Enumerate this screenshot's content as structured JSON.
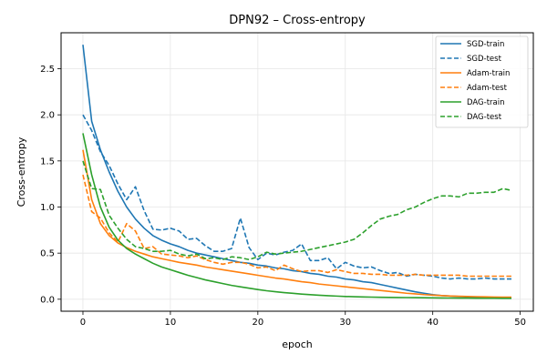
{
  "chart_data": {
    "type": "line",
    "title": "DPN92 – Cross-entropy",
    "xlabel": "epoch",
    "ylabel": "Cross-entropy",
    "xlim": [
      -2.5,
      51.5
    ],
    "ylim": [
      -0.13,
      2.89
    ],
    "x_ticks": [
      0,
      10,
      20,
      30,
      40,
      50
    ],
    "y_ticks": [
      0.0,
      0.5,
      1.0,
      1.5,
      2.0,
      2.5
    ],
    "grid": true,
    "legend_position": "top-right",
    "series": [
      {
        "name": "SGD-train",
        "color": "#1f77b4",
        "dash": false,
        "x": [
          0,
          1,
          2,
          3,
          4,
          5,
          6,
          7,
          8,
          9,
          10,
          11,
          12,
          13,
          14,
          15,
          16,
          17,
          18,
          19,
          20,
          21,
          22,
          23,
          24,
          25,
          26,
          27,
          28,
          29,
          30,
          31,
          32,
          33,
          34,
          35,
          36,
          37,
          38,
          39,
          40,
          41,
          42,
          43,
          44,
          45,
          46,
          47,
          48,
          49
        ],
        "values": [
          2.76,
          1.93,
          1.62,
          1.38,
          1.17,
          1.0,
          0.87,
          0.77,
          0.69,
          0.64,
          0.6,
          0.57,
          0.53,
          0.5,
          0.48,
          0.46,
          0.44,
          0.42,
          0.4,
          0.39,
          0.37,
          0.36,
          0.34,
          0.33,
          0.31,
          0.3,
          0.28,
          0.27,
          0.25,
          0.24,
          0.22,
          0.21,
          0.19,
          0.18,
          0.16,
          0.14,
          0.12,
          0.1,
          0.08,
          0.065,
          0.05,
          0.04,
          0.035,
          0.03,
          0.025,
          0.022,
          0.02,
          0.018,
          0.015,
          0.013
        ]
      },
      {
        "name": "SGD-test",
        "color": "#1f77b4",
        "dash": true,
        "x": [
          0,
          1,
          2,
          3,
          4,
          5,
          6,
          7,
          8,
          9,
          10,
          11,
          12,
          13,
          14,
          15,
          16,
          17,
          18,
          19,
          20,
          21,
          22,
          23,
          24,
          25,
          26,
          27,
          28,
          29,
          30,
          31,
          32,
          33,
          34,
          35,
          36,
          37,
          38,
          39,
          40,
          41,
          42,
          43,
          44,
          45,
          46,
          47,
          48,
          49
        ],
        "values": [
          2.0,
          1.83,
          1.6,
          1.45,
          1.25,
          1.08,
          1.22,
          0.96,
          0.76,
          0.75,
          0.77,
          0.74,
          0.65,
          0.66,
          0.58,
          0.52,
          0.52,
          0.55,
          0.88,
          0.56,
          0.43,
          0.5,
          0.48,
          0.51,
          0.53,
          0.6,
          0.42,
          0.42,
          0.45,
          0.33,
          0.4,
          0.36,
          0.34,
          0.35,
          0.31,
          0.28,
          0.29,
          0.25,
          0.27,
          0.26,
          0.25,
          0.23,
          0.22,
          0.23,
          0.22,
          0.22,
          0.23,
          0.22,
          0.22,
          0.22
        ]
      },
      {
        "name": "Adam-train",
        "color": "#ff7f0e",
        "dash": false,
        "x": [
          0,
          1,
          2,
          3,
          4,
          5,
          6,
          7,
          8,
          9,
          10,
          11,
          12,
          13,
          14,
          15,
          16,
          17,
          18,
          19,
          20,
          21,
          22,
          23,
          24,
          25,
          26,
          27,
          28,
          29,
          30,
          31,
          32,
          33,
          34,
          35,
          36,
          37,
          38,
          39,
          40,
          41,
          42,
          43,
          44,
          45,
          46,
          47,
          48,
          49
        ],
        "values": [
          1.62,
          1.08,
          0.82,
          0.69,
          0.61,
          0.56,
          0.52,
          0.49,
          0.46,
          0.44,
          0.42,
          0.4,
          0.385,
          0.37,
          0.35,
          0.335,
          0.32,
          0.305,
          0.29,
          0.275,
          0.26,
          0.245,
          0.23,
          0.22,
          0.205,
          0.19,
          0.18,
          0.165,
          0.155,
          0.145,
          0.135,
          0.125,
          0.115,
          0.105,
          0.095,
          0.085,
          0.075,
          0.065,
          0.058,
          0.05,
          0.045,
          0.04,
          0.035,
          0.032,
          0.03,
          0.028,
          0.026,
          0.024,
          0.023,
          0.022
        ]
      },
      {
        "name": "Adam-test",
        "color": "#ff7f0e",
        "dash": true,
        "x": [
          0,
          1,
          2,
          3,
          4,
          5,
          6,
          7,
          8,
          9,
          10,
          11,
          12,
          13,
          14,
          15,
          16,
          17,
          18,
          19,
          20,
          21,
          22,
          23,
          24,
          25,
          26,
          27,
          28,
          29,
          30,
          31,
          32,
          33,
          34,
          35,
          36,
          37,
          38,
          39,
          40,
          41,
          42,
          43,
          44,
          45,
          46,
          47,
          48,
          49
        ],
        "values": [
          1.35,
          0.95,
          0.88,
          0.72,
          0.62,
          0.82,
          0.74,
          0.55,
          0.57,
          0.49,
          0.48,
          0.47,
          0.45,
          0.47,
          0.43,
          0.4,
          0.38,
          0.4,
          0.4,
          0.38,
          0.34,
          0.35,
          0.31,
          0.37,
          0.33,
          0.3,
          0.31,
          0.31,
          0.29,
          0.32,
          0.3,
          0.28,
          0.28,
          0.27,
          0.27,
          0.26,
          0.26,
          0.26,
          0.27,
          0.26,
          0.26,
          0.26,
          0.26,
          0.26,
          0.25,
          0.25,
          0.25,
          0.25,
          0.25,
          0.25
        ]
      },
      {
        "name": "DAG-train",
        "color": "#2ca02c",
        "dash": false,
        "x": [
          0,
          1,
          2,
          3,
          4,
          5,
          6,
          7,
          8,
          9,
          10,
          11,
          12,
          13,
          14,
          15,
          16,
          17,
          18,
          19,
          20,
          21,
          22,
          23,
          24,
          25,
          26,
          27,
          28,
          29,
          30,
          31,
          32,
          33,
          34,
          35,
          36,
          37,
          38,
          39,
          40,
          41,
          42,
          43,
          44,
          45,
          46,
          47,
          48,
          49
        ],
        "values": [
          1.8,
          1.35,
          1.0,
          0.78,
          0.64,
          0.55,
          0.49,
          0.44,
          0.39,
          0.35,
          0.32,
          0.29,
          0.26,
          0.235,
          0.21,
          0.19,
          0.17,
          0.15,
          0.135,
          0.12,
          0.105,
          0.092,
          0.082,
          0.072,
          0.064,
          0.056,
          0.049,
          0.043,
          0.038,
          0.034,
          0.03,
          0.027,
          0.025,
          0.023,
          0.021,
          0.02,
          0.019,
          0.018,
          0.017,
          0.016,
          0.015,
          0.014,
          0.013,
          0.012,
          0.012,
          0.011,
          0.011,
          0.011,
          0.01,
          0.01
        ]
      },
      {
        "name": "DAG-test",
        "color": "#2ca02c",
        "dash": true,
        "x": [
          0,
          1,
          2,
          3,
          4,
          5,
          6,
          7,
          8,
          9,
          10,
          11,
          12,
          13,
          14,
          15,
          16,
          17,
          18,
          19,
          20,
          21,
          22,
          23,
          24,
          25,
          26,
          27,
          28,
          29,
          30,
          31,
          32,
          33,
          34,
          35,
          36,
          37,
          38,
          39,
          40,
          41,
          42,
          43,
          44,
          45,
          46,
          47,
          48,
          49
        ],
        "values": [
          1.5,
          1.2,
          1.19,
          0.91,
          0.77,
          0.65,
          0.57,
          0.55,
          0.52,
          0.52,
          0.53,
          0.49,
          0.47,
          0.49,
          0.44,
          0.45,
          0.43,
          0.46,
          0.45,
          0.43,
          0.46,
          0.51,
          0.49,
          0.5,
          0.51,
          0.52,
          0.54,
          0.56,
          0.58,
          0.6,
          0.62,
          0.65,
          0.72,
          0.8,
          0.87,
          0.9,
          0.92,
          0.97,
          1.0,
          1.05,
          1.09,
          1.12,
          1.12,
          1.11,
          1.15,
          1.15,
          1.16,
          1.16,
          1.2,
          1.18
        ]
      }
    ]
  }
}
